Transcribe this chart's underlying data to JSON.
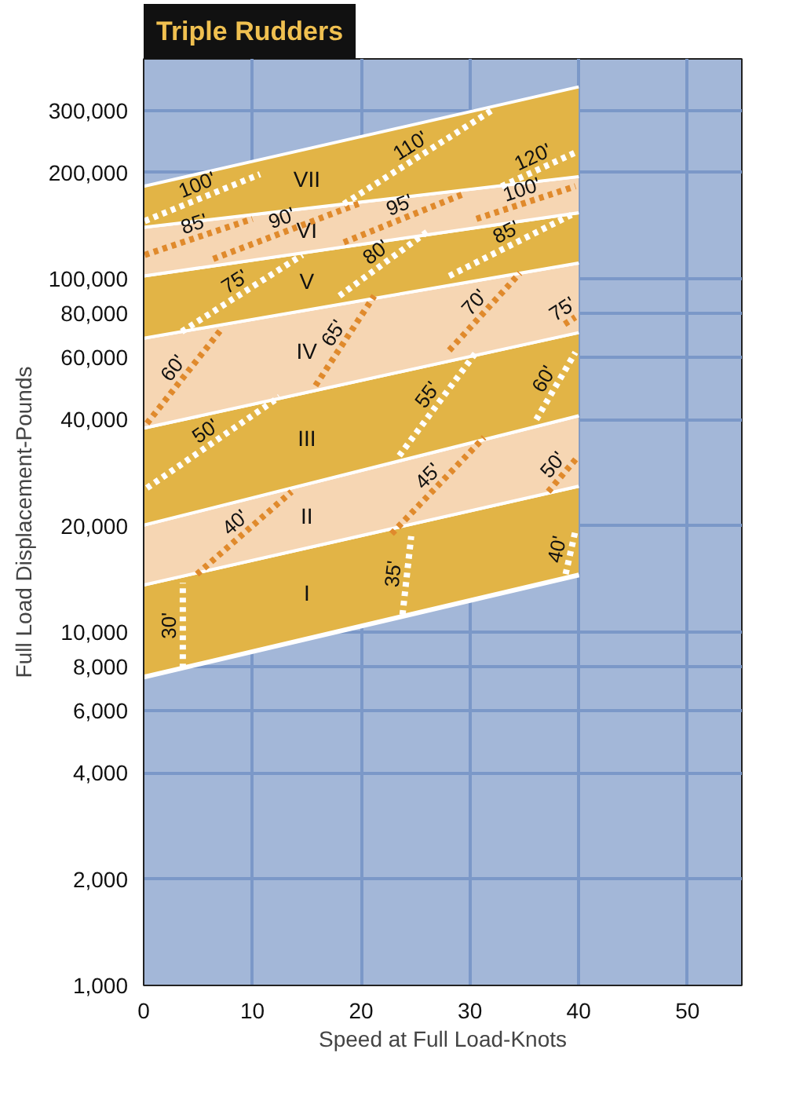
{
  "chart_data": {
    "type": "area",
    "title": "Triple Rudders",
    "xlabel": "Speed at Full Load-Knots",
    "ylabel": "Full Load Displacement-Pounds",
    "xlim": [
      0,
      55
    ],
    "xticks": [
      0,
      10,
      20,
      30,
      40,
      50
    ],
    "ylim": [
      1000,
      420000
    ],
    "log": "y",
    "yticks": [
      {
        "value": 1000,
        "label": "1,000"
      },
      {
        "value": 2000,
        "label": "2,000"
      },
      {
        "value": 4000,
        "label": "4,000"
      },
      {
        "value": 6000,
        "label": "6,000"
      },
      {
        "value": 8000,
        "label": "8,000"
      },
      {
        "value": 10000,
        "label": "10,000"
      },
      {
        "value": 20000,
        "label": "20,000"
      },
      {
        "value": 40000,
        "label": "40,000"
      },
      {
        "value": 60000,
        "label": "60,000"
      },
      {
        "value": 80000,
        "label": "80,000"
      },
      {
        "value": 100000,
        "label": "100,000"
      },
      {
        "value": 200000,
        "label": "200,000"
      },
      {
        "value": 300000,
        "label": "300,000"
      }
    ],
    "grid": true,
    "series": [
      {
        "type": "line",
        "line_style": "solid",
        "color": "#ffffff",
        "x": [
          0,
          40
        ],
        "values": [
          7500,
          14600
        ]
      },
      {
        "name": "I",
        "color": "#e2b446",
        "x": [
          0,
          40
        ],
        "values": [
          13600,
          25900
        ]
      },
      {
        "name": "II",
        "color": "#f6d6b3",
        "x": [
          0,
          40
        ],
        "values": [
          20100,
          41000
        ]
      },
      {
        "name": "III",
        "color": "#e2b446",
        "x": [
          0,
          40
        ],
        "values": [
          37800,
          70500
        ]
      },
      {
        "name": "IV",
        "color": "#f6d6b3",
        "x": [
          0,
          40
        ],
        "values": [
          68000,
          111000
        ]
      },
      {
        "name": "V",
        "color": "#e2b446",
        "x": [
          0,
          40
        ],
        "values": [
          102000,
          154000
        ]
      },
      {
        "name": "VI",
        "color": "#f6d6b3",
        "x": [
          0,
          40
        ],
        "values": [
          140000,
          195000
        ]
      },
      {
        "name": "VII",
        "color": "#e2b446",
        "x": [
          0,
          40
        ],
        "values": [
          183000,
          350000
        ]
      },
      {
        "name": "30'",
        "type": "line",
        "line_style": "dotted",
        "color": "#ffffff",
        "x": [
          3.6,
          3.6
        ],
        "values": [
          7900,
          13800
        ]
      },
      {
        "name": "35'",
        "type": "line",
        "line_style": "dotted",
        "color": "#ffffff",
        "x": [
          23.8,
          24.6
        ],
        "values": [
          11200,
          18700
        ]
      },
      {
        "name": "40'",
        "type": "line",
        "line_style": "dotted",
        "color": "#ffffff",
        "x": [
          38.8,
          39.7
        ],
        "values": [
          14600,
          19400
        ]
      },
      {
        "name": "40'",
        "type": "line",
        "line_style": "dotted",
        "color": "#e08a2c",
        "x": [
          4.9,
          13.6
        ],
        "values": [
          14600,
          25000
        ]
      },
      {
        "name": "45'",
        "type": "line",
        "line_style": "dotted",
        "color": "#e08a2c",
        "x": [
          22.8,
          31.3
        ],
        "values": [
          19000,
          35600
        ]
      },
      {
        "name": "50'",
        "type": "line",
        "line_style": "dotted",
        "color": "#e08a2c",
        "x": [
          37.2,
          40
        ],
        "values": [
          25000,
          31600
        ]
      },
      {
        "name": "50'",
        "type": "line",
        "line_style": "dotted",
        "color": "#ffffff",
        "x": [
          0.3,
          12.5
        ],
        "values": [
          25600,
          46400
        ]
      },
      {
        "name": "55'",
        "type": "line",
        "line_style": "dotted",
        "color": "#ffffff",
        "x": [
          23.5,
          30.7
        ],
        "values": [
          31600,
          62800
        ]
      },
      {
        "name": "60'",
        "type": "line",
        "line_style": "dotted",
        "color": "#ffffff",
        "x": [
          36.1,
          39.7
        ],
        "values": [
          40000,
          62000
        ]
      },
      {
        "name": "60'",
        "type": "line",
        "line_style": "dotted",
        "color": "#e08a2c",
        "x": [
          0.3,
          7.1
        ],
        "values": [
          39000,
          71800
        ]
      },
      {
        "name": "65'",
        "type": "line",
        "line_style": "dotted",
        "color": "#e08a2c",
        "x": [
          15.8,
          21.2
        ],
        "values": [
          49900,
          89600
        ]
      },
      {
        "name": "70'",
        "type": "line",
        "line_style": "dotted",
        "color": "#e08a2c",
        "x": [
          28.1,
          34.6
        ],
        "values": [
          62800,
          104000
        ]
      },
      {
        "name": "75'",
        "type": "line",
        "line_style": "dotted",
        "color": "#e08a2c",
        "x": [
          38.7,
          39.7
        ],
        "values": [
          74500,
          78000
        ]
      },
      {
        "name": "75'",
        "type": "line",
        "line_style": "dotted",
        "color": "#ffffff",
        "x": [
          3.5,
          14.6
        ],
        "values": [
          71000,
          117000
        ]
      },
      {
        "name": "80'",
        "type": "line",
        "line_style": "dotted",
        "color": "#ffffff",
        "x": [
          18,
          26.2
        ],
        "values": [
          89600,
          137000
        ]
      },
      {
        "name": "85'",
        "type": "line",
        "line_style": "dotted",
        "color": "#ffffff",
        "x": [
          28.1,
          39.7
        ],
        "values": [
          102000,
          154000
        ]
      },
      {
        "name": "85'",
        "type": "line",
        "line_style": "dotted",
        "color": "#e08a2c",
        "x": [
          0.1,
          10
        ],
        "values": [
          117000,
          148000
        ]
      },
      {
        "name": "90'",
        "type": "line",
        "line_style": "dotted",
        "color": "#e08a2c",
        "x": [
          6.4,
          19.9
        ],
        "values": [
          114000,
          164000
        ]
      },
      {
        "name": "95'",
        "type": "line",
        "line_style": "dotted",
        "color": "#e08a2c",
        "x": [
          18.4,
          29.6
        ],
        "values": [
          127000,
          175000
        ]
      },
      {
        "name": "100'",
        "type": "line",
        "line_style": "dotted",
        "color": "#e08a2c",
        "x": [
          30.6,
          39.7
        ],
        "values": [
          148000,
          183000
        ]
      },
      {
        "name": "100'",
        "type": "line",
        "line_style": "dotted",
        "color": "#ffffff",
        "x": [
          0.1,
          10.7
        ],
        "values": [
          146000,
          198000
        ]
      },
      {
        "name": "110'",
        "type": "line",
        "line_style": "dotted",
        "color": "#ffffff",
        "x": [
          18.4,
          32
        ],
        "values": [
          163000,
          300000
        ]
      },
      {
        "name": "120'",
        "type": "line",
        "line_style": "dotted",
        "color": "#ffffff",
        "x": [
          32.9,
          39.7
        ],
        "values": [
          183000,
          228000
        ]
      }
    ]
  }
}
